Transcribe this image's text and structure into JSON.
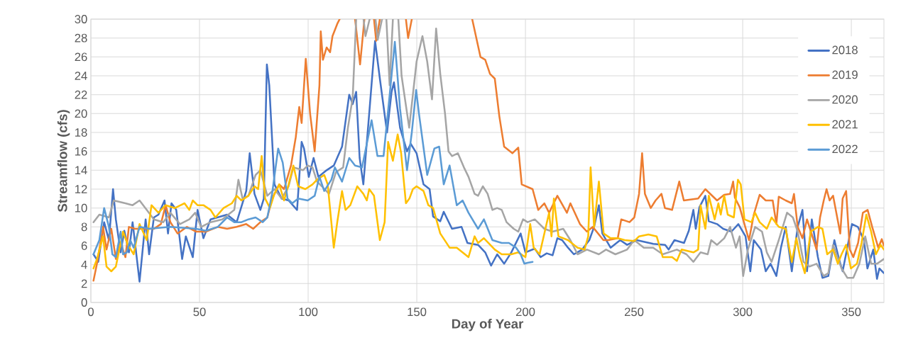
{
  "chart_data": {
    "type": "line",
    "xlabel": "Day of Year",
    "ylabel": "Streamflow (cfs)",
    "xlim": [
      0,
      365
    ],
    "ylim": [
      0,
      30
    ],
    "xticks": [
      0,
      50,
      100,
      150,
      200,
      250,
      300,
      350
    ],
    "yticks": [
      0,
      2,
      4,
      6,
      8,
      10,
      12,
      14,
      16,
      18,
      20,
      22,
      24,
      26,
      28,
      30
    ],
    "grid": true,
    "legend": "top right",
    "series": [
      {
        "name": "2018",
        "color": "#4472c4",
        "x": [
          1.2,
          3.4,
          6.1,
          8.3,
          10.2,
          11.5,
          13.7,
          15.4,
          17.5,
          19.2,
          22.4,
          25.2,
          26.8,
          29,
          31.1,
          33.9,
          35.5,
          37.1,
          39.3,
          42,
          43.7,
          46.9,
          49.1,
          51.8,
          55.1,
          62.7,
          67.1,
          71.5,
          73.1,
          75.3,
          78,
          79.6,
          81,
          82.1,
          84.5,
          87.8,
          91,
          94.9,
          97,
          98.1,
          100.3,
          102.5,
          104.7,
          108.5,
          111.8,
          115.6,
          118.9,
          120.5,
          122.1,
          123.7,
          125.4,
          128.1,
          130.8,
          133,
          136.3,
          138.4,
          139.5,
          142.3,
          145.5,
          147.2,
          149.9,
          153.1,
          155.9,
          157.5,
          160.8,
          162.4,
          166.2,
          170.6,
          173.3,
          178.2,
          181.5,
          184.2,
          187,
          190.2,
          193.5,
          197.8,
          200,
          204.3,
          207,
          209.8,
          212.5,
          214.7,
          216.9,
          219.6,
          222.3,
          226.1,
          229.4,
          231.6,
          233.8,
          235.4,
          239.2,
          243.6,
          246.8,
          251.2,
          258.8,
          264.3,
          265.9,
          268.6,
          273,
          275.2,
          277.3,
          278.4,
          280.1,
          282.8,
          284.4,
          288.2,
          291,
          294.8,
          298,
          301.3,
          303.5,
          305.1,
          308.4,
          310.6,
          312.8,
          315.5,
          317.6,
          319.8,
          322.6,
          325.3,
          327.5,
          329.6,
          331.8,
          334.6,
          336.7,
          339.4,
          342.2,
          344.3,
          346,
          350.3,
          353,
          355.8,
          357.4,
          360.1,
          361.8,
          362.9,
          365
        ],
        "values": [
          5.1,
          4.3,
          8.5,
          6.6,
          12,
          8.8,
          5.3,
          7.6,
          5.3,
          8.5,
          2.2,
          8.8,
          5.1,
          9,
          9.3,
          10.8,
          7.3,
          10.5,
          9.8,
          4.6,
          7,
          4.8,
          9.8,
          6.8,
          8.8,
          9.3,
          8.5,
          11.8,
          15.8,
          11.5,
          9.8,
          11,
          25.2,
          23,
          12.5,
          11,
          10.8,
          9.8,
          17,
          16.3,
          13.3,
          15.3,
          13.3,
          14,
          14.5,
          16.5,
          22,
          21,
          22.3,
          15.3,
          12.5,
          20,
          27.7,
          23.7,
          18,
          22.3,
          23.3,
          18.5,
          16,
          16.8,
          15.8,
          12.5,
          12,
          9.1,
          8.6,
          9.6,
          7.8,
          8,
          6.3,
          6.1,
          5.3,
          3.9,
          5.1,
          4.1,
          5.3,
          7.3,
          5.3,
          5.7,
          4.8,
          5.2,
          5,
          6.8,
          6.6,
          5.8,
          5.1,
          5.6,
          6.6,
          8,
          10.3,
          7.3,
          5.8,
          6.6,
          6.1,
          6.6,
          6.2,
          6.1,
          5.6,
          6.6,
          6.3,
          7.6,
          9.8,
          7.8,
          10.1,
          11.3,
          8.6,
          8.3,
          7.8,
          7.5,
          8.3,
          7,
          3.3,
          6.6,
          5.6,
          3.3,
          4.1,
          2.8,
          5.8,
          8,
          3.3,
          8,
          9.8,
          3.3,
          8.8,
          4.8,
          2.6,
          2.8,
          6.6,
          4.6,
          3.3,
          8.3,
          8,
          6.6,
          3.6,
          5.6,
          2.5,
          3.6,
          3.1
        ]
      },
      {
        "name": "2019",
        "color": "#ed7d31",
        "x": [
          1.2,
          2.8,
          5.6,
          7.2,
          9.4,
          11.5,
          13.7,
          15.9,
          17.5,
          20.3,
          24.6,
          29,
          32.2,
          34.4,
          36.6,
          39.9,
          44.2,
          48.5,
          52.9,
          58.4,
          62.7,
          67.1,
          71.5,
          74.7,
          78,
          81.2,
          83.4,
          86.7,
          88.9,
          92.1,
          94.3,
          95.9,
          97,
          98.9,
          100.9,
          103,
          105.2,
          105.8,
          106.8,
          108.5,
          110.1,
          111.2,
          113.4,
          114.5,
          118,
          121.6,
          123.9,
          125.9,
          128,
          130.3,
          131.3,
          133,
          139,
          145,
          146,
          147.7,
          160,
          175.5,
          179.3,
          181.5,
          183.7,
          185.9,
          188,
          190.2,
          194,
          196.7,
          198.3,
          203.3,
          205.9,
          208.7,
          210.9,
          214.7,
          219.1,
          220.7,
          225.1,
          228.3,
          231,
          235.9,
          238.1,
          242.5,
          244.1,
          247.9,
          250.1,
          252.3,
          253.7,
          255,
          257.7,
          259.9,
          262.6,
          264.2,
          267.5,
          270.8,
          272.9,
          279.5,
          282.8,
          288.2,
          291.5,
          294.2,
          295.6,
          296.4,
          298.6,
          300.8,
          302.9,
          305.1,
          307.8,
          310.6,
          313.8,
          315.5,
          316.6,
          319.8,
          322.6,
          323.6,
          325.3,
          327.5,
          329.6,
          334,
          335.6,
          337.3,
          338.6,
          340,
          341.6,
          344.9,
          346,
          347.6,
          349.3,
          350.9,
          353.1,
          355.3,
          357.5,
          359.6,
          362.4,
          364,
          365
        ],
        "values": [
          2.3,
          4.1,
          8,
          5.6,
          7.8,
          4.6,
          6.3,
          4.8,
          8,
          7.8,
          7.8,
          7.8,
          8.3,
          10.3,
          8.5,
          7.3,
          8,
          7.5,
          7.5,
          8,
          7.8,
          8,
          8.3,
          7.8,
          8.5,
          9,
          11,
          12.5,
          12,
          14.5,
          17.5,
          20.7,
          19,
          25.8,
          20,
          16,
          23,
          28.7,
          25.7,
          27,
          26.5,
          28.2,
          29.5,
          30,
          null,
          30,
          25.2,
          30,
          null,
          30,
          27.7,
          30,
          null,
          30,
          28,
          30,
          null,
          30,
          26,
          25.7,
          24.2,
          23.7,
          19.7,
          16.5,
          15.8,
          16.4,
          12.5,
          12,
          9.8,
          10.5,
          9.5,
          11.3,
          9.5,
          10.5,
          8.3,
          7.5,
          8,
          6.6,
          6.6,
          6.8,
          8.8,
          8.5,
          9,
          11.5,
          15.8,
          11.5,
          10,
          10.8,
          11.5,
          10,
          9.8,
          12.8,
          10.8,
          11,
          12,
          10.8,
          11.4,
          11.5,
          12.8,
          11.1,
          10.1,
          8.3,
          6.6,
          9.3,
          11.4,
          10.8,
          10.8,
          8.3,
          11.2,
          10.8,
          10.5,
          11.5,
          8,
          6.8,
          8.8,
          5.6,
          9,
          10.8,
          12,
          10.8,
          11.3,
          7.3,
          11,
          11.8,
          5.6,
          4.8,
          6.3,
          9.5,
          9.8,
          8,
          5.8,
          6.7,
          6
        ]
      },
      {
        "name": "2020",
        "color": "#a5a5a5",
        "x": [
          1.2,
          3.9,
          8.3,
          10.5,
          15.9,
          19.2,
          22.4,
          25.7,
          29,
          33.3,
          36.6,
          41,
          45.3,
          48,
          50.7,
          55.1,
          60.5,
          66,
          67.9,
          69.8,
          72.5,
          75.8,
          78,
          81.2,
          84.5,
          87.8,
          91,
          93.2,
          97.6,
          99.8,
          102,
          104.1,
          106.3,
          109.6,
          112.8,
          116.1,
          118.3,
          120.5,
          122.1,
          124,
          125.5,
          126.4,
          128.3,
          129,
          131,
          132,
          134,
          135,
          136,
          137.5,
          139,
          140,
          141.5,
          143,
          146.5,
          149.9,
          152.6,
          154.8,
          157,
          158.9,
          160.8,
          163,
          164.6,
          166.2,
          168.9,
          171.7,
          173.8,
          176.6,
          178.2,
          180.4,
          182.6,
          184.8,
          187,
          189.1,
          191.3,
          194.6,
          196.7,
          198.9,
          201,
          204.3,
          208.7,
          212.5,
          217.4,
          220.7,
          224,
          228.3,
          233.8,
          237.1,
          241.4,
          246.8,
          250.1,
          254.5,
          258.8,
          263.2,
          269.7,
          274.1,
          277.3,
          280.6,
          283.9,
          285.5,
          288.2,
          291.5,
          294.2,
          296.9,
          298.6,
          300.2,
          302.4,
          305.7,
          308.9,
          311.1,
          313.3,
          316.6,
          320.4,
          323.1,
          325.3,
          328,
          330.7,
          334,
          337.3,
          339.4,
          341.6,
          345.5,
          348.2,
          350.9,
          353.7,
          356.4,
          359.1,
          361.8,
          365
        ],
        "values": [
          8.5,
          9.3,
          9,
          10.8,
          10.5,
          10.3,
          10.8,
          9.8,
          8.8,
          8.5,
          9.5,
          8.3,
          8.8,
          9.5,
          8,
          8.5,
          8.8,
          9.8,
          13,
          11,
          11.3,
          13.5,
          14,
          11.3,
          12,
          11,
          12.3,
          14.3,
          14,
          14.5,
          14.3,
          12.8,
          12.3,
          11.5,
          13.8,
          14.3,
          18.5,
          21.7,
          30,
          null,
          30,
          28.2,
          30,
          null,
          30,
          27.8,
          30,
          null,
          30,
          23,
          30,
          null,
          30,
          24,
          18.5,
          25.5,
          28.2,
          25.5,
          21.5,
          29,
          24.2,
          20,
          16,
          15.5,
          15.8,
          14.3,
          13.3,
          11.5,
          11.3,
          12.3,
          11.5,
          9.8,
          10,
          9.8,
          8.5,
          7.8,
          7.5,
          8.8,
          8.5,
          8.8,
          7.8,
          7.5,
          7.8,
          6.6,
          5.1,
          5.6,
          5.1,
          5.6,
          5.1,
          5.6,
          6.6,
          5.8,
          5.8,
          5.1,
          5.6,
          5.1,
          4.3,
          5.3,
          5.1,
          6.6,
          6.1,
          6.8,
          8,
          5.8,
          7,
          2.8,
          5.6,
          8,
          7.5,
          5.3,
          4.3,
          6.6,
          9.5,
          9,
          7.5,
          4.3,
          3.8,
          4.1,
          2.8,
          3.1,
          6.1,
          3.6,
          2.6,
          2.6,
          4.1,
          7,
          4.1,
          4.1,
          4.6
        ]
      },
      {
        "name": "2021",
        "color": "#ffc000",
        "x": [
          1.2,
          2.8,
          5.6,
          7.2,
          9.4,
          11.5,
          14.8,
          17,
          19.7,
          22.4,
          25.7,
          27.9,
          31.1,
          34.4,
          38.7,
          43.1,
          45.3,
          46.9,
          49.1,
          51.8,
          55.1,
          57.3,
          61.1,
          64.9,
          67.1,
          69.3,
          72.5,
          75.3,
          77,
          78.6,
          80.2,
          82.4,
          84.5,
          86.7,
          88.9,
          91,
          93.2,
          95.4,
          98.7,
          102,
          104.1,
          107.4,
          109,
          111.8,
          113.4,
          115.6,
          117.2,
          119.4,
          122.6,
          125.4,
          127,
          128.1,
          130.3,
          133,
          135.2,
          136.8,
          139,
          141.2,
          142.8,
          145,
          146.6,
          148.2,
          149.9,
          153.1,
          155.3,
          157.5,
          160.8,
          165.1,
          168.4,
          173.8,
          176.6,
          178.2,
          180.9,
          185.9,
          189.1,
          193.5,
          196.7,
          200,
          202.2,
          203.8,
          206.5,
          208.7,
          210.9,
          212,
          213.1,
          215.2,
          219.6,
          224,
          227.2,
          228.9,
          230,
          231.6,
          233.8,
          236,
          239.2,
          242.5,
          245.7,
          250.1,
          252.3,
          256.6,
          260.4,
          263.2,
          267.5,
          269.7,
          271.9,
          277.3,
          279.5,
          280.6,
          282.8,
          284.4,
          287.1,
          288.8,
          289.9,
          291.5,
          293.1,
          295.9,
          297.8,
          299.1,
          300.8,
          304,
          305.7,
          307.8,
          311.1,
          313.3,
          316.6,
          319.8,
          322.6,
          324.7,
          326.4,
          328.6,
          331.3,
          334.6,
          336.7,
          338.9,
          341.6,
          343.8,
          345.5,
          347.6,
          349.8,
          352.6,
          354.7,
          356.9,
          359.1,
          361.3,
          363.5,
          365
        ],
        "values": [
          3.6,
          4.6,
          7,
          3.8,
          3.3,
          3.8,
          7.5,
          6.1,
          5.1,
          8.3,
          6.6,
          10.3,
          9.5,
          10.3,
          10,
          10.5,
          9.8,
          10.8,
          10.3,
          10.3,
          9.8,
          9,
          10,
          10.5,
          11.3,
          10.8,
          11.3,
          12.3,
          12,
          15.5,
          11,
          10,
          11.5,
          12.5,
          10.8,
          12.5,
          14.5,
          12.3,
          12,
          12.5,
          13,
          13.5,
          12.5,
          5.8,
          8.5,
          11.8,
          9.8,
          10.3,
          12.3,
          11.5,
          10.8,
          12,
          11.3,
          6.6,
          8.5,
          17,
          15,
          17.8,
          15.8,
          10.5,
          11,
          12,
          12.3,
          11.8,
          10.3,
          10,
          7.3,
          5.8,
          5.8,
          4.8,
          7,
          6.3,
          6.8,
          5.6,
          5.1,
          5.1,
          5.3,
          4.8,
          8.3,
          5.8,
          5.1,
          7.3,
          9.5,
          7,
          11,
          7,
          6.6,
          5.8,
          5.6,
          7,
          14.3,
          8,
          12.8,
          7.3,
          6.8,
          6.8,
          6.6,
          6.5,
          7,
          7.2,
          7,
          4.8,
          4.8,
          4.4,
          5.6,
          5.3,
          5.6,
          10.3,
          7.8,
          11.3,
          8.8,
          10.5,
          9.3,
          11.3,
          9.3,
          9,
          13,
          12.5,
          8.8,
          8.5,
          9.5,
          8.5,
          7.8,
          9,
          8,
          7.8,
          4.3,
          6.8,
          4.8,
          3.1,
          7.5,
          8,
          7.8,
          5.1,
          5.6,
          4.1,
          5.1,
          6.1,
          3.6,
          4.1,
          6.3,
          9.3,
          7.5,
          5.1,
          6.1,
          5.6
        ]
      },
      {
        "name": "2022",
        "color": "#5b9bd5",
        "x": [
          1.2,
          3.9,
          6.1,
          8.3,
          9.9,
          11.5,
          13.7,
          14.8,
          16.5,
          18.1,
          19.7,
          22.4,
          26.8,
          31.1,
          36.6,
          43.1,
          48.5,
          52.9,
          58.4,
          62.7,
          66,
          69.3,
          72.5,
          75.8,
          79.1,
          81.2,
          83.4,
          86.2,
          88.3,
          90.5,
          92.7,
          95.4,
          99.8,
          103,
          105.2,
          107.4,
          110.7,
          112.3,
          115.6,
          118.9,
          121.6,
          124.8,
          129.2,
          131.9,
          134.7,
          137.4,
          139.9,
          142.3,
          145.5,
          147.7,
          149.7,
          151,
          154.8,
          158.1,
          160.3,
          162.4,
          165.1,
          168.4,
          171.1,
          173.8,
          178.2,
          180.9,
          184.8,
          189.1,
          192.4,
          195.7,
          197.8,
          199.5,
          201,
          203.3
        ],
        "values": [
          5.1,
          6.6,
          10,
          8,
          5.1,
          4.8,
          7.5,
          5.1,
          5.3,
          6.6,
          5.8,
          8,
          7.8,
          7.9,
          8,
          7.9,
          7.8,
          7.6,
          8,
          9,
          8.5,
          8.5,
          8.8,
          9,
          8.5,
          9,
          11.5,
          16.3,
          14.8,
          11,
          10.5,
          11,
          10.8,
          11.3,
          13.3,
          11.8,
          13,
          14.3,
          12.8,
          15.3,
          14.5,
          14.3,
          19.3,
          15.5,
          15.5,
          21.7,
          27.6,
          20.5,
          14,
          18,
          22.5,
          20,
          13.5,
          16.3,
          16.5,
          12.5,
          14.5,
          10.3,
          10.8,
          9.5,
          7.8,
          8.8,
          6.6,
          6.3,
          6.3,
          5.8,
          5.1,
          4.1,
          4.2,
          4.3
        ]
      }
    ]
  }
}
